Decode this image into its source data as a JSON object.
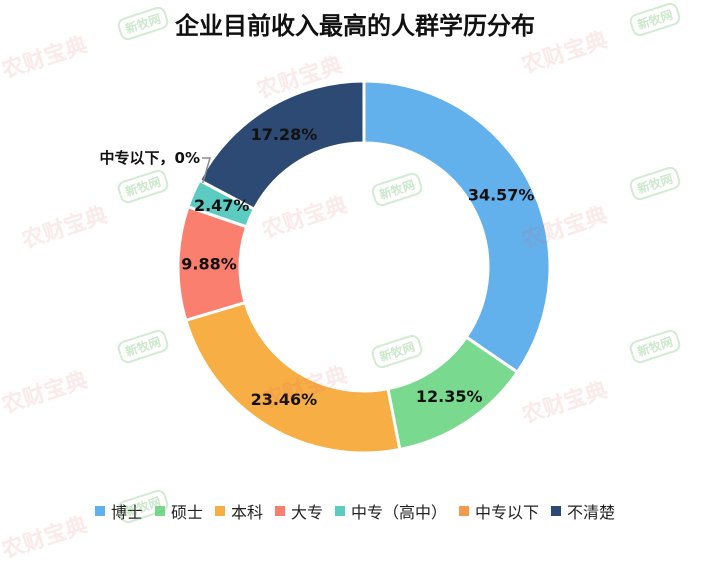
{
  "chart_data": {
    "type": "pie",
    "variant": "donut",
    "title": "企业目前收入最高的人群学历分布",
    "categories": [
      "博士",
      "硕士",
      "本科",
      "大专",
      "中专（高中）",
      "中专以下",
      "不清楚"
    ],
    "values": [
      34.57,
      12.35,
      23.46,
      9.88,
      2.47,
      0,
      17.28
    ],
    "data_labels": [
      "34.57%",
      "12.35%",
      "23.46%",
      "9.88%",
      "2.47%",
      "中专以下，0%",
      "17.28%"
    ],
    "colors": [
      "#62B0EC",
      "#79D98F",
      "#F7AE45",
      "#FA7F6F",
      "#5CCCC2",
      "#F39B4B",
      "#2C4A73"
    ],
    "unit": "%",
    "legend_position": "bottom"
  },
  "watermarks": {
    "brand_text": "农财宝典",
    "badge_text": "新牧网"
  }
}
